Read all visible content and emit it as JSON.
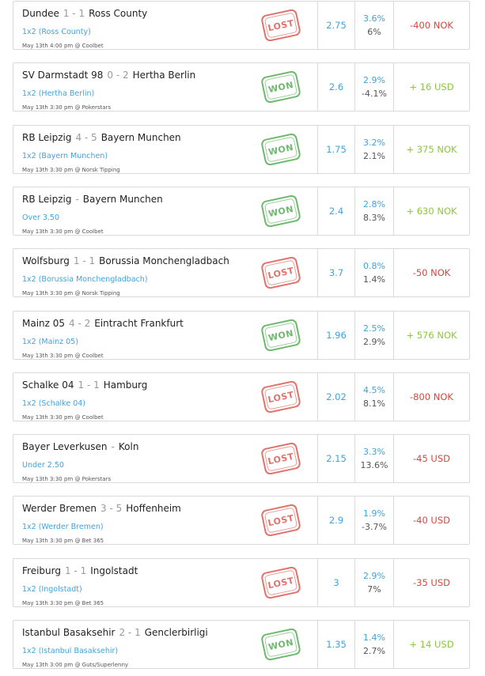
{
  "bets": [
    {
      "home": "Dundee",
      "score": "1 - 1",
      "away": "Ross County",
      "market": "1x2 (Ross County)",
      "meta": "May 13th 4:00 pm @ Coolbet",
      "status": "LOST",
      "odds": "2.75",
      "edge": "3.6%",
      "roi": "6%",
      "result": "-400 NOK"
    },
    {
      "home": "SV Darmstadt 98",
      "score": "0 - 2",
      "away": "Hertha Berlin",
      "market": "1x2 (Hertha Berlin)",
      "meta": "May 13th 3:30 pm @ Pokerstars",
      "status": "WON",
      "odds": "2.6",
      "edge": "2.9%",
      "roi": "-4.1%",
      "result": "+ 16 USD"
    },
    {
      "home": "RB Leipzig",
      "score": "4 - 5",
      "away": "Bayern Munchen",
      "market": "1x2 (Bayern Munchen)",
      "meta": "May 13th 3:30 pm @ Norsk Tipping",
      "status": "WON",
      "odds": "1.75",
      "edge": "3.2%",
      "roi": "2.1%",
      "result": "+ 375 NOK"
    },
    {
      "home": "RB Leipzig",
      "score": "-",
      "away": "Bayern Munchen",
      "market": "Over 3.50",
      "meta": "May 13th 3:30 pm @ Coolbet",
      "status": "WON",
      "odds": "2.4",
      "edge": "2.8%",
      "roi": "8.3%",
      "result": "+ 630 NOK"
    },
    {
      "home": "Wolfsburg",
      "score": "1 - 1",
      "away": "Borussia Monchengladbach",
      "market": "1x2 (Borussia Monchengladbach)",
      "meta": "May 13th 3:30 pm @ Norsk Tipping",
      "status": "LOST",
      "odds": "3.7",
      "edge": "0.8%",
      "roi": "1.4%",
      "result": "-50 NOK"
    },
    {
      "home": "Mainz 05",
      "score": "4 - 2",
      "away": "Eintracht Frankfurt",
      "market": "1x2 (Mainz 05)",
      "meta": "May 13th 3:30 pm @ Coolbet",
      "status": "WON",
      "odds": "1.96",
      "edge": "2.5%",
      "roi": "2.9%",
      "result": "+ 576 NOK"
    },
    {
      "home": "Schalke 04",
      "score": "1 - 1",
      "away": "Hamburg",
      "market": "1x2 (Schalke 04)",
      "meta": "May 13th 3:30 pm @ Coolbet",
      "status": "LOST",
      "odds": "2.02",
      "edge": "4.5%",
      "roi": "8.1%",
      "result": "-800 NOK"
    },
    {
      "home": "Bayer Leverkusen",
      "score": "-",
      "away": "Koln",
      "market": "Under 2.50",
      "meta": "May 13th 3:30 pm @ Pokerstars",
      "status": "LOST",
      "odds": "2.15",
      "edge": "3.3%",
      "roi": "13.6%",
      "result": "-45 USD"
    },
    {
      "home": "Werder Bremen",
      "score": "3 - 5",
      "away": "Hoffenheim",
      "market": "1x2 (Werder Bremen)",
      "meta": "May 13th 3:30 pm @ Bet 365",
      "status": "LOST",
      "odds": "2.9",
      "edge": "1.9%",
      "roi": "-3.7%",
      "result": "-40 USD"
    },
    {
      "home": "Freiburg",
      "score": "1 - 1",
      "away": "Ingolstadt",
      "market": "1x2 (Ingolstadt)",
      "meta": "May 13th 3:30 pm @ Bet 365",
      "status": "LOST",
      "odds": "3",
      "edge": "2.9%",
      "roi": "7%",
      "result": "-35 USD"
    },
    {
      "home": "Istanbul Basaksehir",
      "score": "2 - 1",
      "away": "Genclerbirligi",
      "market": "1x2 (Istanbul Basaksehir)",
      "meta": "May 13th 3:00 pm @ Guts/Superlenny",
      "status": "WON",
      "odds": "1.35",
      "edge": "1.4%",
      "roi": "2.7%",
      "result": "+ 14 USD"
    }
  ],
  "colors": {
    "lost": "#d9463d",
    "won": "#8cc63e",
    "accent": "#3fa3dc"
  }
}
